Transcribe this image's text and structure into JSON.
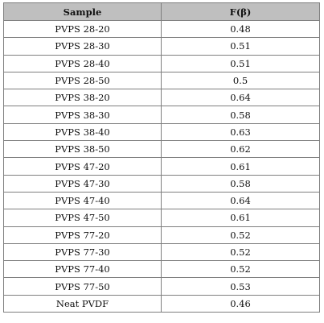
{
  "table": {
    "headers": [
      "Sample",
      "F(β)"
    ],
    "rows": [
      [
        "PVPS 28-20",
        "0.48"
      ],
      [
        "PVPS 28-30",
        "0.51"
      ],
      [
        "PVPS 28-40",
        "0.51"
      ],
      [
        "PVPS 28-50",
        "0.5"
      ],
      [
        "PVPS 38-20",
        "0.64"
      ],
      [
        "PVPS 38-30",
        "0.58"
      ],
      [
        "PVPS 38-40",
        "0.63"
      ],
      [
        "PVPS 38-50",
        "0.62"
      ],
      [
        "PVPS 47-20",
        "0.61"
      ],
      [
        "PVPS 47-30",
        "0.58"
      ],
      [
        "PVPS 47-40",
        "0.64"
      ],
      [
        "PVPS 47-50",
        "0.61"
      ],
      [
        "PVPS 77-20",
        "0.52"
      ],
      [
        "PVPS 77-30",
        "0.52"
      ],
      [
        "PVPS 77-40",
        "0.52"
      ],
      [
        "PVPS 77-50",
        "0.53"
      ],
      [
        "Neat PVDF",
        "0.46"
      ]
    ]
  },
  "colors": {
    "header_bg": "#bfbfbf",
    "border": "#7f7f7f"
  }
}
